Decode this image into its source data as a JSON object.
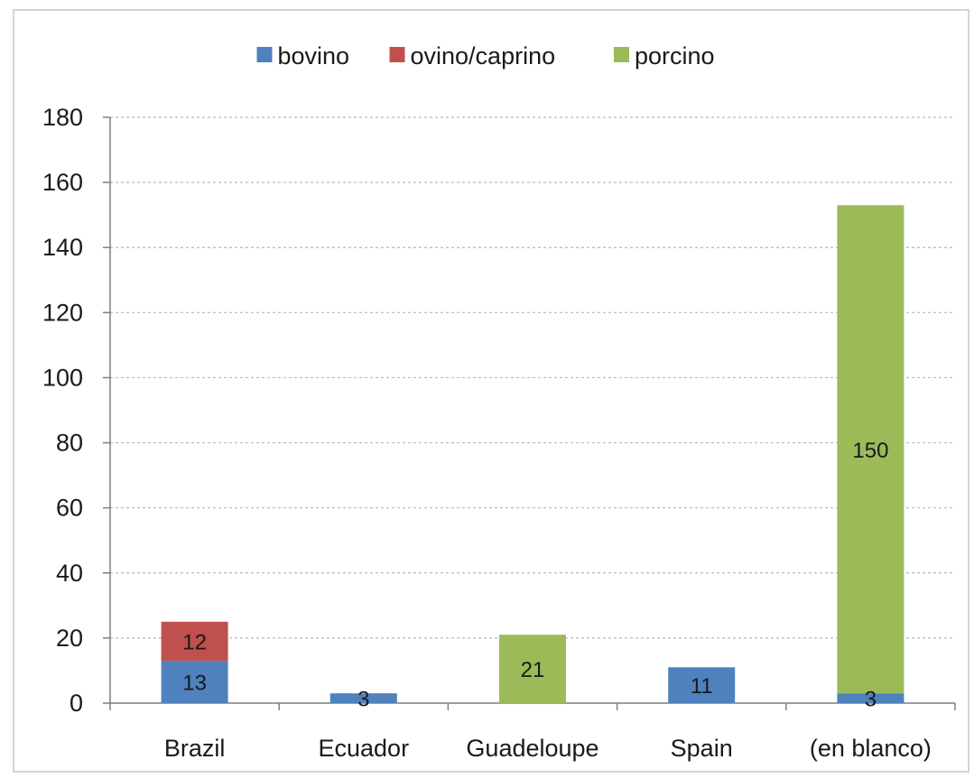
{
  "chart_data": {
    "type": "bar",
    "stacked": true,
    "categories": [
      "Brazil",
      "Ecuador",
      "Guadeloupe",
      "Spain",
      "(en blanco)"
    ],
    "series": [
      {
        "name": "bovino",
        "color": "#4F81BD",
        "values": [
          13,
          3,
          0,
          11,
          3
        ]
      },
      {
        "name": "ovino/caprino",
        "color": "#C0504D",
        "values": [
          12,
          0,
          0,
          0,
          0
        ]
      },
      {
        "name": "porcino",
        "color": "#9BBB59",
        "values": [
          0,
          0,
          21,
          0,
          150
        ]
      }
    ],
    "data_labels": [
      {
        "category": "Brazil",
        "series": "bovino",
        "text": "13"
      },
      {
        "category": "Brazil",
        "series": "ovino/caprino",
        "text": "12"
      },
      {
        "category": "Ecuador",
        "series": "bovino",
        "text": "3"
      },
      {
        "category": "Guadeloupe",
        "series": "porcino",
        "text": "21"
      },
      {
        "category": "Spain",
        "series": "bovino",
        "text": "11"
      },
      {
        "category": "(en blanco)",
        "series": "bovino",
        "text": "3"
      },
      {
        "category": "(en blanco)",
        "series": "porcino",
        "text": "150"
      }
    ],
    "ylim": [
      0,
      180
    ],
    "yticks": [
      0,
      20,
      40,
      60,
      80,
      100,
      120,
      140,
      160,
      180
    ],
    "grid": true,
    "legend_position": "top"
  }
}
